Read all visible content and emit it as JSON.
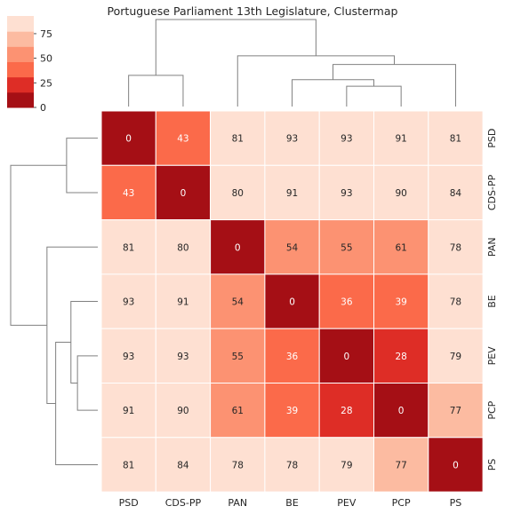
{
  "chart_data": {
    "type": "heatmap",
    "title": "Portuguese Parliament 13th Legislature, Clustermap",
    "rows": [
      "PSD",
      "CDS-PP",
      "PAN",
      "BE",
      "PEV",
      "PCP",
      "PS"
    ],
    "columns": [
      "PSD",
      "CDS-PP",
      "PAN",
      "BE",
      "PEV",
      "PCP",
      "PS"
    ],
    "values": [
      [
        0,
        43,
        81,
        93,
        93,
        91,
        81
      ],
      [
        43,
        0,
        80,
        91,
        93,
        90,
        84
      ],
      [
        81,
        80,
        0,
        54,
        55,
        61,
        78
      ],
      [
        93,
        91,
        54,
        0,
        36,
        39,
        78
      ],
      [
        93,
        93,
        55,
        36,
        0,
        28,
        79
      ],
      [
        91,
        90,
        61,
        39,
        28,
        0,
        77
      ],
      [
        81,
        84,
        78,
        78,
        79,
        77,
        0
      ]
    ],
    "colorbar": {
      "ticks": [
        0,
        25,
        50,
        75
      ],
      "range": [
        0,
        93
      ],
      "colors": [
        "#a50f15",
        "#de2d26",
        "#fb6a4a",
        "#fc9272",
        "#fcbba1",
        "#fee0d2"
      ]
    },
    "column_dendrogram_merges": [
      {
        "pair": [
          "PEV",
          "PCP"
        ],
        "level": 28
      },
      {
        "pair": [
          "BE",
          "PEV+PCP"
        ],
        "level": 37
      },
      {
        "pair": [
          "PSD",
          "CDS-PP"
        ],
        "level": 43
      },
      {
        "pair": [
          "BE+PEV+PCP",
          "PS"
        ],
        "level": 58
      },
      {
        "pair": [
          "PAN",
          "BE+PEV+PCP+PS"
        ],
        "level": 70
      },
      {
        "pair": [
          "PSD+CDS-PP",
          "PAN+BE+PEV+PCP+PS"
        ],
        "level": 120
      }
    ]
  }
}
